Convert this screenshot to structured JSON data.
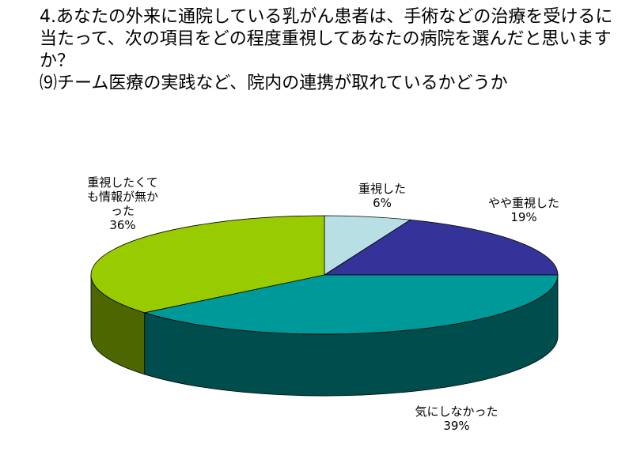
{
  "chart_data": {
    "type": "pie3d",
    "title": "4.あなたの外来に通院している乳がん患者は、手術などの治療を受けるに当たって、次の項目をどの程度重視してあなたの病院を選んだと思いますか？",
    "subtitle": "⑼チーム医療の実践など、院内の連携が取れているかどうか",
    "categories": [
      "重視した",
      "やや重視した",
      "気にしなかった",
      "重視したくても情報が無かった"
    ],
    "values": [
      6,
      19,
      39,
      36
    ],
    "value_labels": [
      "6%",
      "19%",
      "39%",
      "36%"
    ],
    "colors": [
      "#b8e0e4",
      "#333399",
      "#009999",
      "#99cc00"
    ]
  }
}
